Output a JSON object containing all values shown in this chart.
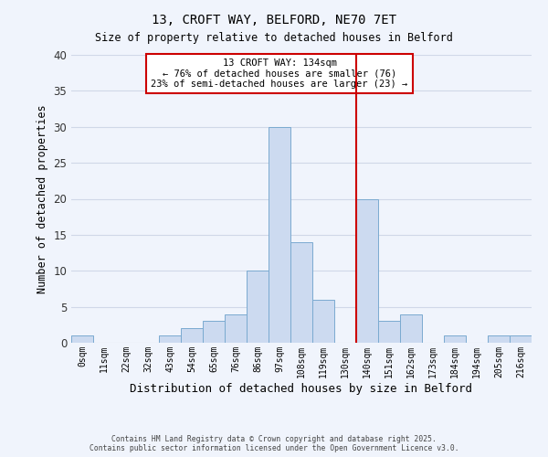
{
  "title_line1": "13, CROFT WAY, BELFORD, NE70 7ET",
  "title_line2": "Size of property relative to detached houses in Belford",
  "xlabel": "Distribution of detached houses by size in Belford",
  "ylabel": "Number of detached properties",
  "bin_labels": [
    "0sqm",
    "11sqm",
    "22sqm",
    "32sqm",
    "43sqm",
    "54sqm",
    "65sqm",
    "76sqm",
    "86sqm",
    "97sqm",
    "108sqm",
    "119sqm",
    "130sqm",
    "140sqm",
    "151sqm",
    "162sqm",
    "173sqm",
    "184sqm",
    "194sqm",
    "205sqm",
    "216sqm"
  ],
  "bar_values": [
    1,
    0,
    0,
    0,
    1,
    2,
    3,
    4,
    10,
    30,
    14,
    6,
    0,
    20,
    3,
    4,
    0,
    1,
    0,
    1,
    1
  ],
  "bar_color": "#ccdaf0",
  "bar_edge_color": "#7aaad0",
  "vline_x": 12.5,
  "vline_color": "#cc0000",
  "annotation_title": "13 CROFT WAY: 134sqm",
  "annotation_line1": "← 76% of detached houses are smaller (76)",
  "annotation_line2": "23% of semi-detached houses are larger (23) →",
  "annotation_box_color": "#ffffff",
  "annotation_box_edge": "#cc0000",
  "ylim": [
    0,
    40
  ],
  "yticks": [
    0,
    5,
    10,
    15,
    20,
    25,
    30,
    35,
    40
  ],
  "footer_line1": "Contains HM Land Registry data © Crown copyright and database right 2025.",
  "footer_line2": "Contains public sector information licensed under the Open Government Licence v3.0.",
  "bg_color": "#f0f4fc",
  "grid_color": "#d0d8e8"
}
